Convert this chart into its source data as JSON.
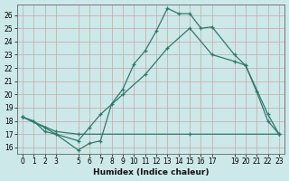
{
  "xlabel": "Humidex (Indice chaleur)",
  "bg_color": "#cde8e8",
  "grid_color": "#c4a8a8",
  "line_color": "#2d7a6a",
  "xlim": [
    -0.5,
    23.5
  ],
  "ylim": [
    15.5,
    26.8
  ],
  "xticks": [
    0,
    1,
    2,
    3,
    5,
    6,
    7,
    8,
    9,
    10,
    11,
    12,
    13,
    14,
    15,
    16,
    17,
    19,
    20,
    21,
    22,
    23
  ],
  "yticks": [
    16,
    17,
    18,
    19,
    20,
    21,
    22,
    23,
    24,
    25,
    26
  ],
  "line1_x": [
    0,
    1,
    2,
    3,
    5,
    6,
    7,
    8,
    9,
    10,
    11,
    12,
    13,
    14,
    15,
    16,
    17,
    19,
    20,
    21,
    22,
    23
  ],
  "line1_y": [
    18.3,
    18.0,
    17.2,
    17.0,
    15.8,
    16.3,
    16.5,
    19.3,
    20.4,
    22.3,
    23.3,
    24.8,
    26.5,
    26.1,
    26.1,
    25.0,
    25.1,
    23.0,
    22.2,
    20.2,
    18.0,
    17.0
  ],
  "line2_x": [
    0,
    2,
    3,
    5,
    6,
    7,
    9,
    11,
    13,
    15,
    17,
    19,
    20,
    22,
    23
  ],
  "line2_y": [
    18.3,
    17.5,
    17.0,
    16.5,
    17.5,
    18.5,
    20.0,
    21.5,
    23.5,
    25.0,
    23.0,
    22.5,
    22.2,
    18.5,
    17.0
  ],
  "line3_x": [
    0,
    3,
    5,
    15,
    23
  ],
  "line3_y": [
    18.3,
    17.2,
    17.0,
    17.0,
    17.0
  ]
}
